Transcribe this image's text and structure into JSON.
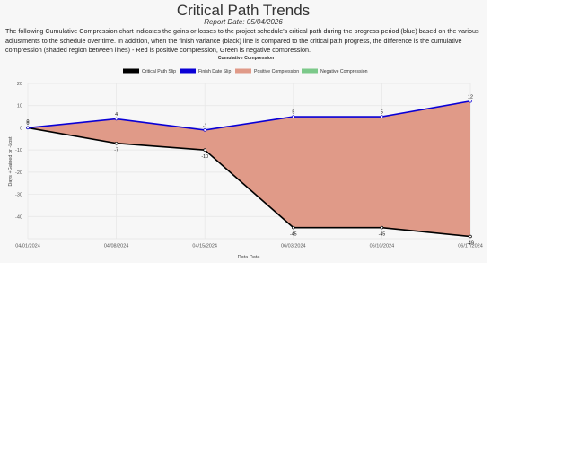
{
  "header": {
    "title": "Critical Path Trends",
    "report_date": "Report Date: 05/04/2026",
    "intro": "The following Cumulative Compression chart indicates the gains or losses to the project schedule's critical path during the progress period (blue) based on the various adjustments to the schedule over time. In addition, when the finish variance (black) line is compared to the critical path progress, the difference is the cumulative compression (shaded region between lines) - Red is positive compression, Green is negative compression."
  },
  "colors": {
    "critical": "#000000",
    "finish": "#0a00d6",
    "positive": "#e09a88",
    "negative": "#7cc98a",
    "grid": "#e6e6e6",
    "panel": "#f7f7f7"
  },
  "chart_data": {
    "type": "area",
    "title": "Cumulative Compression",
    "xlabel": "Data Date",
    "ylabel": "Days +Gained or -Lost",
    "categories": [
      "04/01/2024",
      "04/08/2024",
      "04/15/2024",
      "06/03/2024",
      "06/10/2024",
      "06/17/2024"
    ],
    "ylim": [
      -50,
      20
    ],
    "yticks": [
      20,
      10,
      0,
      -10,
      -20,
      -30,
      -40
    ],
    "grid": true,
    "legend_position": "top",
    "series": [
      {
        "name": "Critical Path Slip",
        "color_key": "critical",
        "values": [
          0,
          -7,
          -10,
          -45,
          -45,
          -49
        ],
        "labels": [
          "0",
          "-7",
          "-10",
          "-45",
          "-45",
          "-49"
        ]
      },
      {
        "name": "Finish Date Slip",
        "color_key": "finish",
        "values": [
          0,
          4,
          -1,
          5,
          5,
          12
        ],
        "labels": [
          "0",
          "4",
          "-1",
          "5",
          "5",
          "12"
        ]
      }
    ],
    "fills": [
      {
        "name": "Positive Compression",
        "color_key": "positive"
      },
      {
        "name": "Negative Compression",
        "color_key": "negative"
      }
    ]
  }
}
